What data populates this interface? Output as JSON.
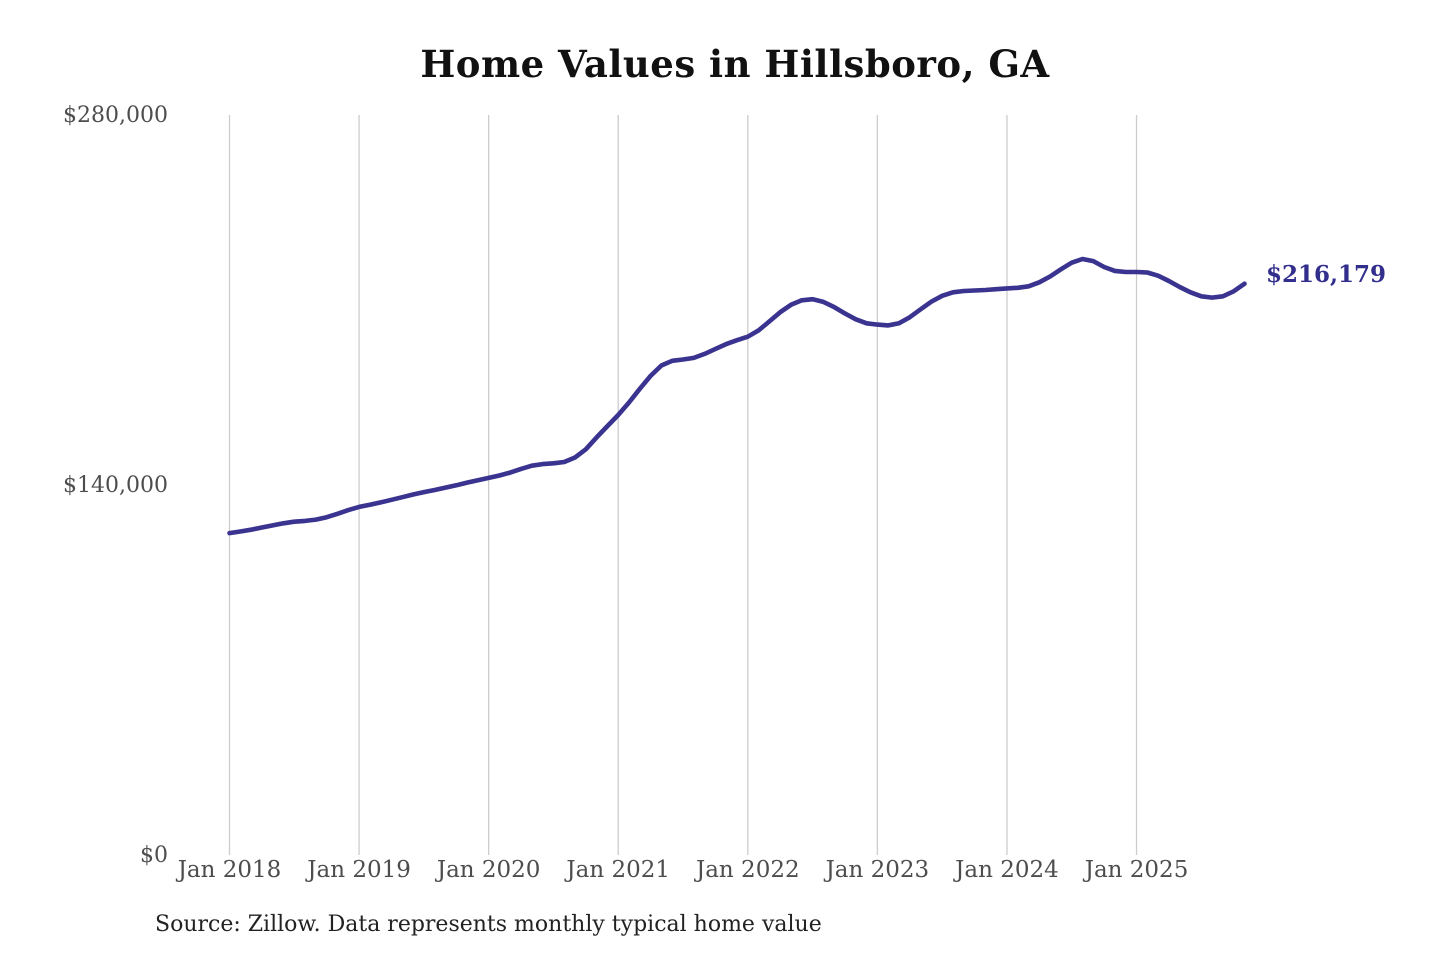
{
  "source_note": "Source: Zillow. Data represents monthly typical home value",
  "colors": {
    "line": "#3a338f",
    "end_label": "#322e8c",
    "gridline": "#cccccc",
    "axis_text": "#4d4d4d",
    "title_text": "#111111",
    "background": "#ffffff"
  },
  "chart_data": {
    "type": "line",
    "title": "Home Values in Hillsboro, GA",
    "series_name": "Monthly typical home value",
    "unit": "USD",
    "x_start": "2018-01",
    "x_end": "2025-11",
    "x_tick_labels": [
      "Jan 2018",
      "Jan 2019",
      "Jan 2020",
      "Jan 2021",
      "Jan 2022",
      "Jan 2023",
      "Jan 2024",
      "Jan 2025"
    ],
    "y_tick_labels": [
      "$0",
      "$140,000",
      "$280,000"
    ],
    "y_ticks": [
      0,
      140000,
      280000
    ],
    "ylim": [
      0,
      280000
    ],
    "grid": "vertical-only",
    "legend": "none",
    "line_color": "#3a338f",
    "end_label": "$216,179",
    "final_value": 216179,
    "values": [
      121800,
      122400,
      123100,
      123900,
      124700,
      125500,
      126100,
      126400,
      126900,
      127800,
      129100,
      130500,
      131700,
      132500,
      133400,
      134400,
      135400,
      136400,
      137300,
      138100,
      139000,
      139900,
      140900,
      141800,
      142700,
      143600,
      144700,
      146100,
      147300,
      147900,
      148200,
      148700,
      150400,
      153500,
      158000,
      162300,
      166500,
      171200,
      176400,
      181300,
      185200,
      187000,
      187500,
      188100,
      189600,
      191500,
      193300,
      194800,
      196100,
      198500,
      201900,
      205400,
      208200,
      209900,
      210300,
      209300,
      207300,
      204900,
      202700,
      201200,
      200700,
      200400,
      201200,
      203500,
      206500,
      209400,
      211600,
      212900,
      213400,
      213600,
      213800,
      214100,
      214400,
      214600,
      215200,
      216700,
      218900,
      221600,
      224100,
      225500,
      224700,
      222500,
      221000,
      220600,
      220600,
      220400,
      219200,
      217200,
      214900,
      212900,
      211400,
      210900,
      211400,
      213300,
      216179
    ]
  }
}
